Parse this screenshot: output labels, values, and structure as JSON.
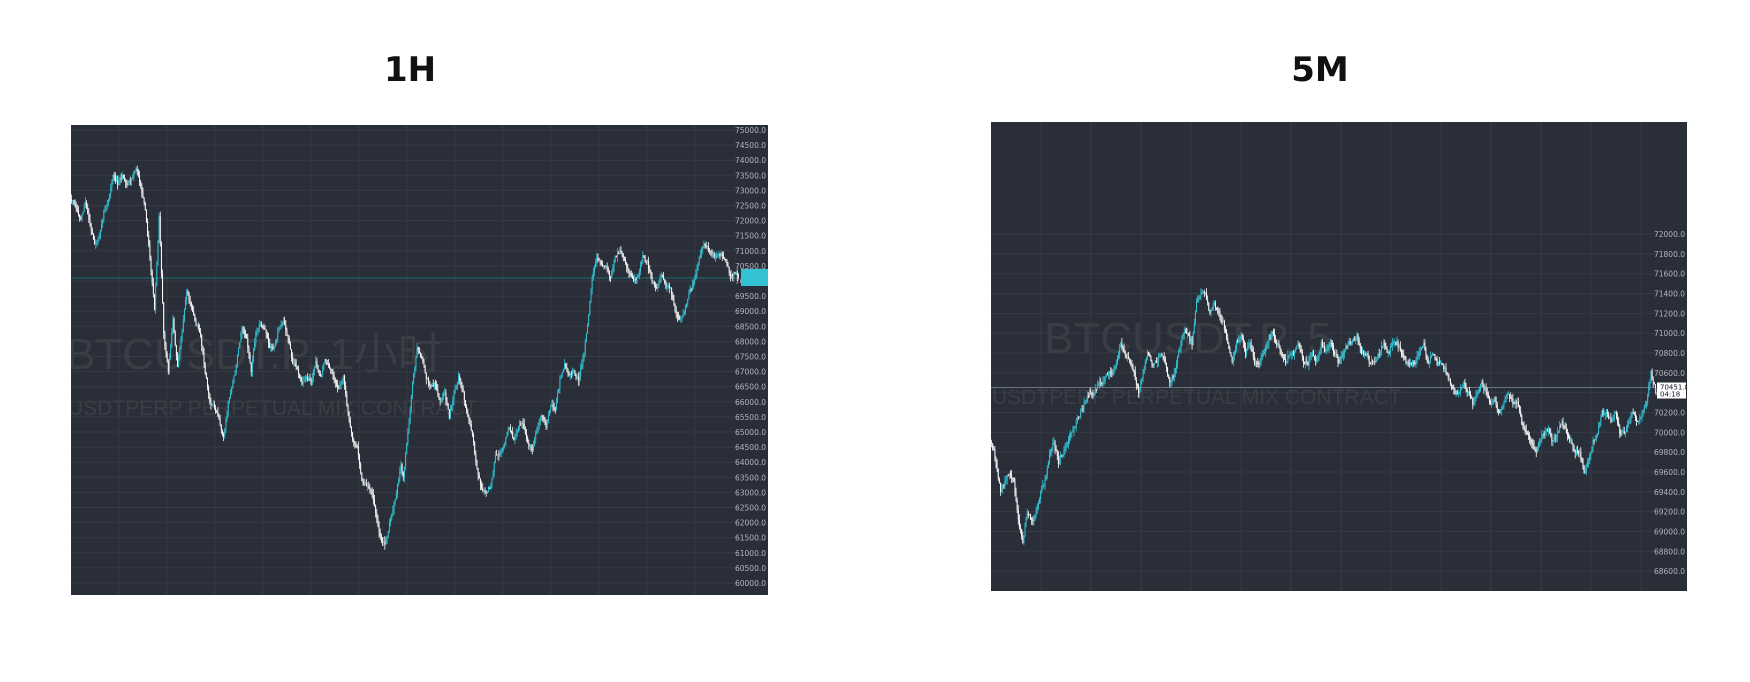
{
  "panels": [
    {
      "title": "1H"
    },
    {
      "title": "5M"
    }
  ],
  "colors": {
    "background": "#2a2e39",
    "grid": "#363a45",
    "up": "#33c3d3",
    "down": "#ffffff",
    "watermark": "#3a3e44",
    "axis_text": "#b2b5be"
  },
  "chart_data": [
    {
      "type": "candlestick",
      "title": "1H",
      "ylim": [
        60000,
        75000
      ],
      "y_ticks": [
        "75000.0",
        "74500.0",
        "74000.0",
        "73500.0",
        "73000.0",
        "72500.0",
        "72000.0",
        "71500.0",
        "71000.0",
        "70500.0",
        "70000.0",
        "69500.0",
        "69000.0",
        "68500.0",
        "68000.0",
        "67500.0",
        "67000.0",
        "66500.0",
        "66000.0",
        "65500.0",
        "65000.0",
        "64500.0",
        "64000.0",
        "63500.0",
        "63000.0",
        "62500.0",
        "62000.0",
        "61500.0",
        "61000.0",
        "60500.0",
        "60000.0"
      ],
      "watermark": [
        "BTCUSDT.P, 1小时",
        "USDTPERP PERPETUAL MIX CONTRACT"
      ],
      "last_price": 70100,
      "anchors": [
        [
          0,
          72700
        ],
        [
          4,
          72400
        ],
        [
          8,
          72000
        ],
        [
          12,
          72600
        ],
        [
          16,
          71900
        ],
        [
          20,
          71200
        ],
        [
          24,
          71400
        ],
        [
          28,
          72300
        ],
        [
          32,
          72700
        ],
        [
          36,
          73500
        ],
        [
          40,
          73200
        ],
        [
          44,
          73500
        ],
        [
          48,
          73200
        ],
        [
          52,
          73400
        ],
        [
          56,
          73700
        ],
        [
          60,
          73200
        ],
        [
          64,
          72300
        ],
        [
          68,
          70800
        ],
        [
          72,
          69100
        ],
        [
          74,
          70500
        ],
        [
          76,
          72100
        ],
        [
          78,
          70300
        ],
        [
          80,
          68200
        ],
        [
          84,
          67000
        ],
        [
          88,
          68700
        ],
        [
          92,
          67100
        ],
        [
          96,
          68400
        ],
        [
          100,
          69700
        ],
        [
          104,
          69100
        ],
        [
          108,
          68600
        ],
        [
          112,
          68200
        ],
        [
          116,
          67000
        ],
        [
          120,
          66000
        ],
        [
          124,
          65800
        ],
        [
          128,
          65400
        ],
        [
          132,
          64800
        ],
        [
          136,
          66000
        ],
        [
          140,
          66600
        ],
        [
          144,
          67500
        ],
        [
          148,
          68400
        ],
        [
          152,
          68100
        ],
        [
          156,
          67000
        ],
        [
          160,
          68300
        ],
        [
          164,
          68600
        ],
        [
          168,
          68400
        ],
        [
          172,
          67800
        ],
        [
          176,
          67800
        ],
        [
          180,
          68400
        ],
        [
          184,
          68700
        ],
        [
          188,
          68100
        ],
        [
          192,
          67300
        ],
        [
          196,
          67100
        ],
        [
          200,
          66600
        ],
        [
          204,
          66800
        ],
        [
          208,
          66600
        ],
        [
          212,
          67400
        ],
        [
          216,
          66800
        ],
        [
          220,
          67400
        ],
        [
          224,
          67100
        ],
        [
          228,
          66800
        ],
        [
          232,
          66400
        ],
        [
          236,
          66800
        ],
        [
          240,
          65700
        ],
        [
          244,
          64700
        ],
        [
          248,
          64500
        ],
        [
          252,
          63400
        ],
        [
          256,
          63200
        ],
        [
          260,
          63100
        ],
        [
          264,
          62300
        ],
        [
          268,
          61500
        ],
        [
          272,
          61300
        ],
        [
          274,
          61600
        ],
        [
          278,
          62300
        ],
        [
          282,
          63000
        ],
        [
          286,
          63900
        ],
        [
          288,
          63500
        ],
        [
          292,
          65000
        ],
        [
          296,
          66600
        ],
        [
          300,
          67800
        ],
        [
          304,
          67500
        ],
        [
          308,
          66800
        ],
        [
          312,
          66500
        ],
        [
          316,
          66600
        ],
        [
          320,
          66000
        ],
        [
          324,
          66300
        ],
        [
          328,
          65500
        ],
        [
          332,
          66300
        ],
        [
          336,
          66800
        ],
        [
          340,
          66300
        ],
        [
          344,
          65500
        ],
        [
          348,
          64900
        ],
        [
          352,
          63800
        ],
        [
          356,
          63100
        ],
        [
          360,
          63000
        ],
        [
          364,
          63200
        ],
        [
          368,
          64200
        ],
        [
          372,
          64300
        ],
        [
          376,
          64600
        ],
        [
          380,
          65200
        ],
        [
          384,
          64700
        ],
        [
          388,
          65200
        ],
        [
          392,
          65300
        ],
        [
          396,
          64600
        ],
        [
          400,
          64400
        ],
        [
          404,
          65100
        ],
        [
          408,
          65600
        ],
        [
          412,
          65200
        ],
        [
          416,
          65900
        ],
        [
          420,
          65800
        ],
        [
          424,
          66700
        ],
        [
          428,
          67200
        ],
        [
          432,
          66900
        ],
        [
          436,
          67000
        ],
        [
          440,
          66700
        ],
        [
          444,
          67400
        ],
        [
          448,
          68500
        ],
        [
          452,
          70100
        ],
        [
          456,
          70800
        ],
        [
          460,
          70500
        ],
        [
          464,
          70500
        ],
        [
          468,
          70100
        ],
        [
          472,
          70800
        ],
        [
          476,
          71000
        ],
        [
          480,
          70700
        ],
        [
          484,
          70300
        ],
        [
          488,
          70000
        ],
        [
          492,
          70200
        ],
        [
          496,
          70800
        ],
        [
          500,
          70600
        ],
        [
          504,
          70000
        ],
        [
          508,
          69800
        ],
        [
          512,
          70200
        ],
        [
          516,
          69800
        ],
        [
          520,
          69800
        ],
        [
          524,
          69000
        ],
        [
          528,
          68700
        ],
        [
          532,
          69000
        ],
        [
          536,
          69600
        ],
        [
          540,
          69900
        ],
        [
          544,
          70600
        ],
        [
          548,
          71200
        ],
        [
          552,
          71100
        ],
        [
          556,
          70900
        ],
        [
          560,
          70800
        ],
        [
          564,
          70900
        ],
        [
          568,
          70700
        ],
        [
          572,
          70100
        ],
        [
          576,
          70300
        ],
        [
          579,
          70100
        ]
      ]
    },
    {
      "type": "candlestick",
      "title": "5M",
      "ylim": [
        68500,
        73100
      ],
      "y_ticks": [
        "72000.0",
        "71800.0",
        "71600.0",
        "71400.0",
        "71200.0",
        "71000.0",
        "70800.0",
        "70600.0",
        "70400.0",
        "70200.0",
        "70000.0",
        "69800.0",
        "69600.0",
        "69400.0",
        "69200.0",
        "69000.0",
        "68800.0",
        "68600.0"
      ],
      "watermark": [
        "BTCUSDT.P, 5",
        "USDTPERP PERPETUAL MIX CONTRACT"
      ],
      "last_price": 70451.8,
      "last_price_label": "70451.8",
      "countdown_label": "04:18",
      "anchors": [
        [
          0,
          69900
        ],
        [
          4,
          69700
        ],
        [
          8,
          69400
        ],
        [
          12,
          69500
        ],
        [
          16,
          69600
        ],
        [
          20,
          69500
        ],
        [
          24,
          69100
        ],
        [
          28,
          68900
        ],
        [
          32,
          69200
        ],
        [
          36,
          69100
        ],
        [
          40,
          69200
        ],
        [
          44,
          69400
        ],
        [
          48,
          69500
        ],
        [
          52,
          69800
        ],
        [
          56,
          69900
        ],
        [
          60,
          69700
        ],
        [
          64,
          69800
        ],
        [
          68,
          69900
        ],
        [
          72,
          70000
        ],
        [
          76,
          70100
        ],
        [
          80,
          70200
        ],
        [
          84,
          70300
        ],
        [
          88,
          70400
        ],
        [
          92,
          70400
        ],
        [
          96,
          70500
        ],
        [
          100,
          70500
        ],
        [
          104,
          70600
        ],
        [
          108,
          70600
        ],
        [
          112,
          70700
        ],
        [
          116,
          70900
        ],
        [
          120,
          70800
        ],
        [
          124,
          70700
        ],
        [
          128,
          70600
        ],
        [
          132,
          70400
        ],
        [
          136,
          70600
        ],
        [
          140,
          70800
        ],
        [
          144,
          70700
        ],
        [
          148,
          70700
        ],
        [
          152,
          70800
        ],
        [
          156,
          70700
        ],
        [
          160,
          70500
        ],
        [
          164,
          70600
        ],
        [
          168,
          70800
        ],
        [
          172,
          71000
        ],
        [
          176,
          71000
        ],
        [
          180,
          70900
        ],
        [
          184,
          71300
        ],
        [
          188,
          71400
        ],
        [
          192,
          71400
        ],
        [
          196,
          71200
        ],
        [
          200,
          71300
        ],
        [
          204,
          71200
        ],
        [
          208,
          71100
        ],
        [
          212,
          70900
        ],
        [
          216,
          70700
        ],
        [
          220,
          70900
        ],
        [
          224,
          71000
        ],
        [
          228,
          70800
        ],
        [
          232,
          70900
        ],
        [
          236,
          70700
        ],
        [
          240,
          70700
        ],
        [
          244,
          70800
        ],
        [
          248,
          70900
        ],
        [
          252,
          71000
        ],
        [
          256,
          70900
        ],
        [
          260,
          70800
        ],
        [
          264,
          70700
        ],
        [
          268,
          70800
        ],
        [
          272,
          70800
        ],
        [
          276,
          70900
        ],
        [
          280,
          70700
        ],
        [
          284,
          70700
        ],
        [
          288,
          70800
        ],
        [
          292,
          70700
        ],
        [
          296,
          70900
        ],
        [
          300,
          70800
        ],
        [
          304,
          70900
        ],
        [
          308,
          70800
        ],
        [
          312,
          70700
        ],
        [
          316,
          70800
        ],
        [
          320,
          70900
        ],
        [
          324,
          70900
        ],
        [
          328,
          71000
        ],
        [
          332,
          70800
        ],
        [
          336,
          70800
        ],
        [
          340,
          70700
        ],
        [
          344,
          70700
        ],
        [
          348,
          70800
        ],
        [
          352,
          70900
        ],
        [
          356,
          70800
        ],
        [
          360,
          70900
        ],
        [
          364,
          70900
        ],
        [
          368,
          70800
        ],
        [
          372,
          70700
        ],
        [
          376,
          70700
        ],
        [
          380,
          70700
        ],
        [
          384,
          70800
        ],
        [
          388,
          70900
        ],
        [
          392,
          70700
        ],
        [
          396,
          70800
        ],
        [
          400,
          70700
        ],
        [
          404,
          70700
        ],
        [
          408,
          70600
        ],
        [
          412,
          70500
        ],
        [
          416,
          70400
        ],
        [
          420,
          70400
        ],
        [
          424,
          70500
        ],
        [
          428,
          70400
        ],
        [
          432,
          70300
        ],
        [
          436,
          70400
        ],
        [
          440,
          70500
        ],
        [
          444,
          70400
        ],
        [
          448,
          70300
        ],
        [
          452,
          70300
        ],
        [
          456,
          70200
        ],
        [
          460,
          70300
        ],
        [
          464,
          70400
        ],
        [
          468,
          70300
        ],
        [
          472,
          70300
        ],
        [
          476,
          70100
        ],
        [
          480,
          70000
        ],
        [
          484,
          69900
        ],
        [
          488,
          69800
        ],
        [
          492,
          69900
        ],
        [
          496,
          70000
        ],
        [
          500,
          70000
        ],
        [
          504,
          69900
        ],
        [
          508,
          70000
        ],
        [
          512,
          70100
        ],
        [
          516,
          70000
        ],
        [
          520,
          69900
        ],
        [
          524,
          69800
        ],
        [
          528,
          69800
        ],
        [
          532,
          69600
        ],
        [
          536,
          69700
        ],
        [
          540,
          69900
        ],
        [
          544,
          70000
        ],
        [
          548,
          70200
        ],
        [
          552,
          70200
        ],
        [
          556,
          70100
        ],
        [
          560,
          70200
        ],
        [
          564,
          70000
        ],
        [
          568,
          70000
        ],
        [
          572,
          70100
        ],
        [
          576,
          70200
        ],
        [
          580,
          70100
        ],
        [
          584,
          70200
        ],
        [
          588,
          70300
        ],
        [
          592,
          70600
        ],
        [
          594,
          70500
        ],
        [
          596,
          70451
        ]
      ]
    }
  ]
}
